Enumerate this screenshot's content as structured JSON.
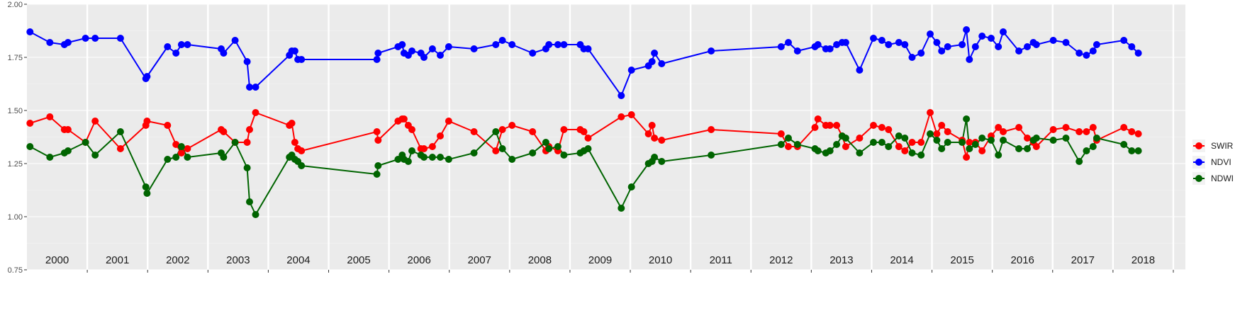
{
  "chart_data": {
    "type": "line",
    "title": "",
    "xlabel": "",
    "ylabel": "",
    "xlim": [
      2000.0,
      2019.2
    ],
    "ylim": [
      0.75,
      2.0
    ],
    "y_ticks": [
      "0.75",
      "1.00",
      "1.25",
      "1.50",
      "1.75",
      "2.00"
    ],
    "year_labels": [
      "2000",
      "2001",
      "2002",
      "2003",
      "2004",
      "2005",
      "2006",
      "2007",
      "2008",
      "2009",
      "2010",
      "2011",
      "2012",
      "2013",
      "2014",
      "2015",
      "2016",
      "2017",
      "2018"
    ],
    "grid": true,
    "legend_position": "right",
    "series": [
      {
        "name": "SWIR",
        "color": "#ff0000",
        "points": [
          [
            2000.05,
            1.44
          ],
          [
            2000.38,
            1.47
          ],
          [
            2000.62,
            1.41
          ],
          [
            2000.68,
            1.41
          ],
          [
            2000.97,
            1.35
          ],
          [
            2001.13,
            1.45
          ],
          [
            2001.55,
            1.32
          ],
          [
            2001.97,
            1.43
          ],
          [
            2001.99,
            1.45
          ],
          [
            2002.33,
            1.43
          ],
          [
            2002.47,
            1.34
          ],
          [
            2002.56,
            1.3
          ],
          [
            2002.66,
            1.32
          ],
          [
            2003.22,
            1.41
          ],
          [
            2003.26,
            1.4
          ],
          [
            2003.45,
            1.35
          ],
          [
            2003.65,
            1.35
          ],
          [
            2003.69,
            1.41
          ],
          [
            2003.79,
            1.49
          ],
          [
            2004.35,
            1.43
          ],
          [
            2004.39,
            1.44
          ],
          [
            2004.44,
            1.35
          ],
          [
            2004.49,
            1.32
          ],
          [
            2004.55,
            1.31
          ],
          [
            2005.8,
            1.4
          ],
          [
            2005.82,
            1.36
          ],
          [
            2006.15,
            1.45
          ],
          [
            2006.22,
            1.46
          ],
          [
            2006.25,
            1.46
          ],
          [
            2006.32,
            1.43
          ],
          [
            2006.38,
            1.41
          ],
          [
            2006.53,
            1.32
          ],
          [
            2006.58,
            1.32
          ],
          [
            2006.72,
            1.33
          ],
          [
            2006.85,
            1.38
          ],
          [
            2006.99,
            1.45
          ],
          [
            2007.41,
            1.4
          ],
          [
            2007.77,
            1.31
          ],
          [
            2007.88,
            1.41
          ],
          [
            2008.04,
            1.43
          ],
          [
            2008.38,
            1.4
          ],
          [
            2008.6,
            1.31
          ],
          [
            2008.65,
            1.33
          ],
          [
            2008.8,
            1.31
          ],
          [
            2008.9,
            1.41
          ],
          [
            2009.17,
            1.41
          ],
          [
            2009.23,
            1.4
          ],
          [
            2009.3,
            1.37
          ],
          [
            2009.85,
            1.47
          ],
          [
            2010.02,
            1.48
          ],
          [
            2010.3,
            1.39
          ],
          [
            2010.36,
            1.43
          ],
          [
            2010.4,
            1.37
          ],
          [
            2010.52,
            1.36
          ],
          [
            2011.34,
            1.41
          ],
          [
            2012.5,
            1.39
          ],
          [
            2012.62,
            1.33
          ],
          [
            2012.77,
            1.33
          ],
          [
            2013.06,
            1.42
          ],
          [
            2013.11,
            1.46
          ],
          [
            2013.24,
            1.43
          ],
          [
            2013.31,
            1.43
          ],
          [
            2013.42,
            1.43
          ],
          [
            2013.51,
            1.38
          ],
          [
            2013.57,
            1.33
          ],
          [
            2013.8,
            1.37
          ],
          [
            2014.03,
            1.43
          ],
          [
            2014.17,
            1.42
          ],
          [
            2014.28,
            1.41
          ],
          [
            2014.45,
            1.33
          ],
          [
            2014.55,
            1.31
          ],
          [
            2014.67,
            1.35
          ],
          [
            2014.82,
            1.35
          ],
          [
            2014.97,
            1.49
          ],
          [
            2015.08,
            1.39
          ],
          [
            2015.16,
            1.43
          ],
          [
            2015.26,
            1.4
          ],
          [
            2015.5,
            1.36
          ],
          [
            2015.57,
            1.28
          ],
          [
            2015.62,
            1.35
          ],
          [
            2015.72,
            1.35
          ],
          [
            2015.83,
            1.31
          ],
          [
            2015.98,
            1.38
          ],
          [
            2016.1,
            1.42
          ],
          [
            2016.18,
            1.4
          ],
          [
            2016.44,
            1.42
          ],
          [
            2016.58,
            1.37
          ],
          [
            2016.68,
            1.35
          ],
          [
            2016.73,
            1.33
          ],
          [
            2017.01,
            1.41
          ],
          [
            2017.22,
            1.42
          ],
          [
            2017.44,
            1.4
          ],
          [
            2017.56,
            1.4
          ],
          [
            2017.67,
            1.42
          ],
          [
            2017.73,
            1.36
          ],
          [
            2018.18,
            1.42
          ],
          [
            2018.31,
            1.4
          ],
          [
            2018.42,
            1.39
          ]
        ]
      },
      {
        "name": "NDVI",
        "color": "#0000ff",
        "points": [
          [
            2000.05,
            1.87
          ],
          [
            2000.38,
            1.82
          ],
          [
            2000.62,
            1.81
          ],
          [
            2000.68,
            1.82
          ],
          [
            2000.97,
            1.84
          ],
          [
            2001.13,
            1.84
          ],
          [
            2001.55,
            1.84
          ],
          [
            2001.97,
            1.65
          ],
          [
            2001.99,
            1.66
          ],
          [
            2002.33,
            1.8
          ],
          [
            2002.47,
            1.77
          ],
          [
            2002.56,
            1.81
          ],
          [
            2002.66,
            1.81
          ],
          [
            2003.22,
            1.79
          ],
          [
            2003.26,
            1.77
          ],
          [
            2003.45,
            1.83
          ],
          [
            2003.65,
            1.73
          ],
          [
            2003.69,
            1.61
          ],
          [
            2003.79,
            1.61
          ],
          [
            2004.35,
            1.76
          ],
          [
            2004.39,
            1.78
          ],
          [
            2004.44,
            1.78
          ],
          [
            2004.49,
            1.74
          ],
          [
            2004.55,
            1.74
          ],
          [
            2005.8,
            1.74
          ],
          [
            2005.82,
            1.77
          ],
          [
            2006.15,
            1.8
          ],
          [
            2006.22,
            1.81
          ],
          [
            2006.25,
            1.77
          ],
          [
            2006.32,
            1.76
          ],
          [
            2006.38,
            1.78
          ],
          [
            2006.53,
            1.77
          ],
          [
            2006.58,
            1.75
          ],
          [
            2006.72,
            1.79
          ],
          [
            2006.85,
            1.76
          ],
          [
            2006.99,
            1.8
          ],
          [
            2007.41,
            1.79
          ],
          [
            2007.77,
            1.81
          ],
          [
            2007.88,
            1.83
          ],
          [
            2008.04,
            1.81
          ],
          [
            2008.38,
            1.77
          ],
          [
            2008.6,
            1.79
          ],
          [
            2008.65,
            1.81
          ],
          [
            2008.8,
            1.81
          ],
          [
            2008.9,
            1.81
          ],
          [
            2009.17,
            1.81
          ],
          [
            2009.23,
            1.79
          ],
          [
            2009.3,
            1.79
          ],
          [
            2009.85,
            1.57
          ],
          [
            2010.02,
            1.69
          ],
          [
            2010.3,
            1.71
          ],
          [
            2010.36,
            1.73
          ],
          [
            2010.4,
            1.77
          ],
          [
            2010.52,
            1.72
          ],
          [
            2011.34,
            1.78
          ],
          [
            2012.5,
            1.8
          ],
          [
            2012.62,
            1.82
          ],
          [
            2012.77,
            1.78
          ],
          [
            2013.06,
            1.8
          ],
          [
            2013.11,
            1.81
          ],
          [
            2013.24,
            1.79
          ],
          [
            2013.31,
            1.79
          ],
          [
            2013.42,
            1.81
          ],
          [
            2013.51,
            1.82
          ],
          [
            2013.57,
            1.82
          ],
          [
            2013.8,
            1.69
          ],
          [
            2014.03,
            1.84
          ],
          [
            2014.17,
            1.83
          ],
          [
            2014.28,
            1.81
          ],
          [
            2014.45,
            1.82
          ],
          [
            2014.55,
            1.81
          ],
          [
            2014.67,
            1.75
          ],
          [
            2014.82,
            1.77
          ],
          [
            2014.97,
            1.86
          ],
          [
            2015.08,
            1.82
          ],
          [
            2015.16,
            1.78
          ],
          [
            2015.26,
            1.8
          ],
          [
            2015.5,
            1.81
          ],
          [
            2015.57,
            1.88
          ],
          [
            2015.62,
            1.74
          ],
          [
            2015.72,
            1.8
          ],
          [
            2015.83,
            1.85
          ],
          [
            2015.98,
            1.84
          ],
          [
            2016.1,
            1.8
          ],
          [
            2016.18,
            1.87
          ],
          [
            2016.44,
            1.78
          ],
          [
            2016.58,
            1.8
          ],
          [
            2016.68,
            1.82
          ],
          [
            2016.73,
            1.81
          ],
          [
            2017.01,
            1.83
          ],
          [
            2017.22,
            1.82
          ],
          [
            2017.44,
            1.77
          ],
          [
            2017.56,
            1.76
          ],
          [
            2017.67,
            1.78
          ],
          [
            2017.73,
            1.81
          ],
          [
            2018.18,
            1.83
          ],
          [
            2018.31,
            1.8
          ],
          [
            2018.42,
            1.77
          ]
        ]
      },
      {
        "name": "NDWI",
        "color": "#006400",
        "points": [
          [
            2000.05,
            1.33
          ],
          [
            2000.38,
            1.28
          ],
          [
            2000.62,
            1.3
          ],
          [
            2000.68,
            1.31
          ],
          [
            2000.97,
            1.35
          ],
          [
            2001.13,
            1.29
          ],
          [
            2001.55,
            1.4
          ],
          [
            2001.97,
            1.14
          ],
          [
            2001.99,
            1.11
          ],
          [
            2002.33,
            1.27
          ],
          [
            2002.47,
            1.28
          ],
          [
            2002.56,
            1.33
          ],
          [
            2002.66,
            1.28
          ],
          [
            2003.22,
            1.3
          ],
          [
            2003.26,
            1.28
          ],
          [
            2003.45,
            1.35
          ],
          [
            2003.65,
            1.23
          ],
          [
            2003.69,
            1.07
          ],
          [
            2003.79,
            1.01
          ],
          [
            2004.35,
            1.28
          ],
          [
            2004.39,
            1.29
          ],
          [
            2004.44,
            1.27
          ],
          [
            2004.49,
            1.26
          ],
          [
            2004.55,
            1.24
          ],
          [
            2005.8,
            1.2
          ],
          [
            2005.82,
            1.24
          ],
          [
            2006.15,
            1.27
          ],
          [
            2006.22,
            1.29
          ],
          [
            2006.25,
            1.27
          ],
          [
            2006.32,
            1.26
          ],
          [
            2006.38,
            1.31
          ],
          [
            2006.53,
            1.29
          ],
          [
            2006.58,
            1.28
          ],
          [
            2006.72,
            1.28
          ],
          [
            2006.85,
            1.28
          ],
          [
            2006.99,
            1.27
          ],
          [
            2007.41,
            1.3
          ],
          [
            2007.77,
            1.4
          ],
          [
            2007.88,
            1.32
          ],
          [
            2008.04,
            1.27
          ],
          [
            2008.38,
            1.3
          ],
          [
            2008.6,
            1.35
          ],
          [
            2008.65,
            1.32
          ],
          [
            2008.8,
            1.33
          ],
          [
            2008.9,
            1.29
          ],
          [
            2009.17,
            1.3
          ],
          [
            2009.23,
            1.31
          ],
          [
            2009.3,
            1.32
          ],
          [
            2009.85,
            1.04
          ],
          [
            2010.02,
            1.14
          ],
          [
            2010.3,
            1.25
          ],
          [
            2010.36,
            1.26
          ],
          [
            2010.4,
            1.28
          ],
          [
            2010.52,
            1.26
          ],
          [
            2011.34,
            1.29
          ],
          [
            2012.5,
            1.34
          ],
          [
            2012.62,
            1.37
          ],
          [
            2012.77,
            1.34
          ],
          [
            2013.06,
            1.32
          ],
          [
            2013.11,
            1.31
          ],
          [
            2013.24,
            1.3
          ],
          [
            2013.31,
            1.31
          ],
          [
            2013.42,
            1.34
          ],
          [
            2013.51,
            1.38
          ],
          [
            2013.57,
            1.37
          ],
          [
            2013.8,
            1.3
          ],
          [
            2014.03,
            1.35
          ],
          [
            2014.17,
            1.35
          ],
          [
            2014.28,
            1.33
          ],
          [
            2014.45,
            1.38
          ],
          [
            2014.55,
            1.37
          ],
          [
            2014.67,
            1.3
          ],
          [
            2014.82,
            1.29
          ],
          [
            2014.97,
            1.39
          ],
          [
            2015.08,
            1.36
          ],
          [
            2015.16,
            1.32
          ],
          [
            2015.26,
            1.35
          ],
          [
            2015.5,
            1.35
          ],
          [
            2015.57,
            1.46
          ],
          [
            2015.62,
            1.32
          ],
          [
            2015.72,
            1.34
          ],
          [
            2015.83,
            1.37
          ],
          [
            2015.98,
            1.36
          ],
          [
            2016.1,
            1.29
          ],
          [
            2016.18,
            1.36
          ],
          [
            2016.44,
            1.32
          ],
          [
            2016.58,
            1.32
          ],
          [
            2016.68,
            1.36
          ],
          [
            2016.73,
            1.37
          ],
          [
            2017.01,
            1.36
          ],
          [
            2017.22,
            1.37
          ],
          [
            2017.44,
            1.26
          ],
          [
            2017.56,
            1.31
          ],
          [
            2017.67,
            1.33
          ],
          [
            2017.73,
            1.37
          ],
          [
            2018.18,
            1.34
          ],
          [
            2018.31,
            1.31
          ],
          [
            2018.42,
            1.31
          ]
        ]
      }
    ]
  }
}
